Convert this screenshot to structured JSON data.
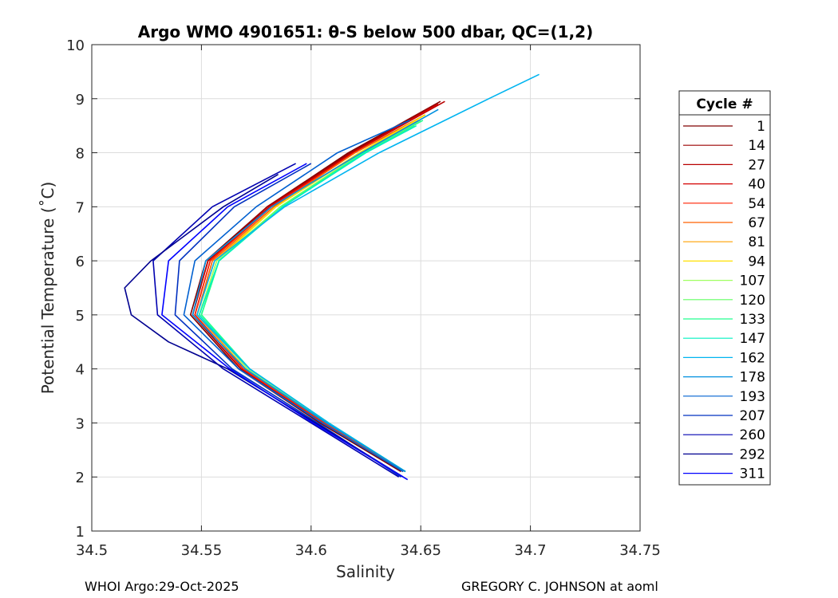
{
  "chart_data": {
    "type": "line",
    "title": "Argo WMO 4901651: θ-S below 500 dbar,  QC=(1,2)",
    "xlabel": "Salinity",
    "ylabel": "Potential Temperature (˚C)",
    "xlim": [
      34.5,
      34.75
    ],
    "ylim": [
      1,
      10
    ],
    "xticks": [
      34.5,
      34.55,
      34.6,
      34.65,
      34.7,
      34.75
    ],
    "xtick_labels": [
      "34.5",
      "34.55",
      "34.6",
      "34.65",
      "34.7",
      "34.75"
    ],
    "yticks": [
      1,
      2,
      3,
      4,
      5,
      6,
      7,
      8,
      9,
      10
    ],
    "ytick_labels": [
      "1",
      "2",
      "3",
      "4",
      "5",
      "6",
      "7",
      "8",
      "9",
      "10"
    ],
    "grid": true,
    "legend_title": "Cycle #",
    "legend_position": "outside-right",
    "series": [
      {
        "name": "1",
        "color": "#800000",
        "theta": [
          2.1,
          3.0,
          4.0,
          5.0,
          6.0,
          7.0,
          8.0,
          8.95
        ],
        "salinity": [
          34.641,
          34.604,
          34.567,
          34.545,
          34.552,
          34.58,
          34.617,
          34.659
        ]
      },
      {
        "name": "14",
        "color": "#9c0000",
        "theta": [
          2.1,
          3.0,
          4.0,
          5.0,
          6.0,
          7.0,
          8.0,
          8.9
        ],
        "salinity": [
          34.642,
          34.605,
          34.568,
          34.546,
          34.553,
          34.58,
          34.618,
          34.657
        ]
      },
      {
        "name": "27",
        "color": "#b80000",
        "theta": [
          2.1,
          3.0,
          4.0,
          5.0,
          6.0,
          7.0,
          8.0,
          8.95
        ],
        "salinity": [
          34.642,
          34.605,
          34.568,
          34.546,
          34.553,
          34.581,
          34.619,
          34.661
        ]
      },
      {
        "name": "40",
        "color": "#d40000",
        "theta": [
          2.1,
          3.0,
          4.0,
          5.0,
          6.0,
          7.0,
          8.0,
          8.9
        ],
        "salinity": [
          34.643,
          34.606,
          34.569,
          34.547,
          34.554,
          34.581,
          34.619,
          34.658
        ]
      },
      {
        "name": "54",
        "color": "#ff2000",
        "theta": [
          2.1,
          3.0,
          4.0,
          5.0,
          6.0,
          7.0,
          8.0,
          8.7
        ],
        "salinity": [
          34.643,
          34.606,
          34.569,
          34.547,
          34.554,
          34.582,
          34.62,
          34.652
        ]
      },
      {
        "name": "67",
        "color": "#ff6000",
        "theta": [
          2.1,
          3.0,
          4.0,
          5.0,
          6.0,
          7.0,
          8.0,
          8.7
        ],
        "salinity": [
          34.643,
          34.607,
          34.57,
          34.548,
          34.555,
          34.583,
          34.62,
          34.652
        ]
      },
      {
        "name": "81",
        "color": "#ffa000",
        "theta": [
          2.1,
          3.0,
          4.0,
          5.0,
          6.0,
          7.0,
          8.0,
          8.6
        ],
        "salinity": [
          34.643,
          34.607,
          34.57,
          34.548,
          34.556,
          34.584,
          34.622,
          34.649
        ]
      },
      {
        "name": "94",
        "color": "#ffe000",
        "theta": [
          2.1,
          3.0,
          4.0,
          5.0,
          6.0,
          7.0,
          8.0,
          8.7
        ],
        "salinity": [
          34.643,
          34.607,
          34.571,
          34.549,
          34.557,
          34.584,
          34.622,
          34.652
        ]
      },
      {
        "name": "107",
        "color": "#a0ff60",
        "theta": [
          2.1,
          3.0,
          4.0,
          5.0,
          6.0,
          7.0,
          8.0,
          8.6
        ],
        "salinity": [
          34.643,
          34.608,
          34.571,
          34.549,
          34.557,
          34.586,
          34.623,
          34.65
        ]
      },
      {
        "name": "120",
        "color": "#60ff60",
        "theta": [
          2.1,
          3.0,
          4.0,
          5.0,
          6.0,
          7.0,
          8.0,
          8.5
        ],
        "salinity": [
          34.643,
          34.608,
          34.572,
          34.55,
          34.558,
          34.586,
          34.624,
          34.647
        ]
      },
      {
        "name": "133",
        "color": "#20ff90",
        "theta": [
          2.1,
          3.0,
          4.0,
          5.0,
          6.0,
          7.0,
          8.0,
          8.6
        ],
        "salinity": [
          34.643,
          34.608,
          34.572,
          34.55,
          34.558,
          34.587,
          34.624,
          34.651
        ]
      },
      {
        "name": "147",
        "color": "#00f0c0",
        "theta": [
          2.1,
          3.0,
          4.0,
          5.0,
          6.0,
          7.0,
          8.0,
          8.5
        ],
        "salinity": [
          34.643,
          34.608,
          34.572,
          34.549,
          34.558,
          34.587,
          34.625,
          34.648
        ]
      },
      {
        "name": "162",
        "color": "#00b4f0",
        "theta": [
          2.1,
          3.0,
          4.0,
          5.0,
          6.0,
          7.0,
          8.0,
          9.0,
          9.45
        ],
        "salinity": [
          34.643,
          34.608,
          34.572,
          34.548,
          34.556,
          34.588,
          34.631,
          34.681,
          34.704
        ]
      },
      {
        "name": "178",
        "color": "#0090e0",
        "theta": [
          2.1,
          3.0,
          4.0,
          5.0,
          6.0,
          7.0,
          8.0,
          8.8
        ],
        "salinity": [
          34.643,
          34.607,
          34.57,
          34.546,
          34.552,
          34.582,
          34.623,
          34.658
        ]
      },
      {
        "name": "193",
        "color": "#0060d0",
        "theta": [
          2.1,
          3.0,
          4.0,
          5.0,
          6.0,
          7.0,
          8.0,
          8.6
        ],
        "salinity": [
          34.642,
          34.605,
          34.567,
          34.542,
          34.547,
          34.575,
          34.612,
          34.645
        ]
      },
      {
        "name": "207",
        "color": "#0030c0",
        "theta": [
          2.0,
          3.0,
          4.0,
          5.0,
          6.0,
          7.0,
          7.8
        ],
        "salinity": [
          34.641,
          34.603,
          34.564,
          34.538,
          34.54,
          34.565,
          34.6
        ]
      },
      {
        "name": "260",
        "color": "#0000b0",
        "theta": [
          2.0,
          3.0,
          4.0,
          5.0,
          6.0,
          7.0,
          7.8
        ],
        "salinity": [
          34.64,
          34.6,
          34.56,
          34.53,
          34.528,
          34.555,
          34.593
        ]
      },
      {
        "name": "292",
        "color": "#000090",
        "theta": [
          2.0,
          3.0,
          4.0,
          4.5,
          5.0,
          5.5,
          6.0,
          7.0,
          7.6
        ],
        "salinity": [
          34.642,
          34.602,
          34.562,
          34.535,
          34.518,
          34.515,
          34.527,
          34.56,
          34.585
        ]
      },
      {
        "name": "311",
        "color": "#0000ff",
        "theta": [
          1.95,
          3.0,
          4.0,
          5.0,
          6.0,
          7.0,
          7.8
        ],
        "salinity": [
          34.644,
          34.601,
          34.563,
          34.532,
          34.535,
          34.562,
          34.598
        ]
      }
    ]
  },
  "footer": {
    "left": "WHOI Argo:29-Oct-2025",
    "right": "GREGORY C. JOHNSON at aoml"
  }
}
